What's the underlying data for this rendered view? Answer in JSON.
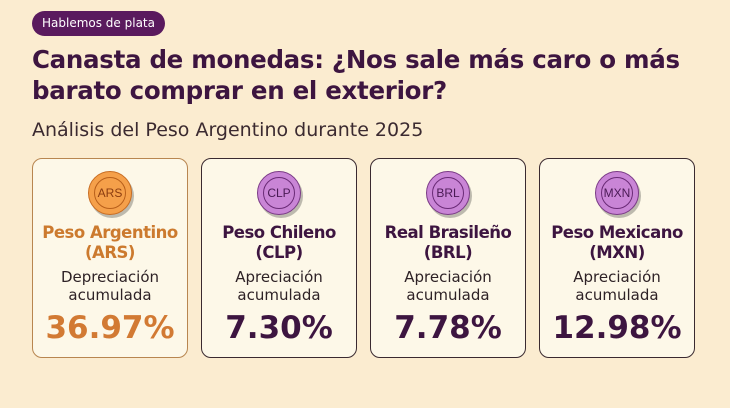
{
  "badge": "Hablemos de plata",
  "title": "Canasta de monedas: ¿Nos sale más caro o más barato comprar en el exterior?",
  "subtitle": "Análisis del Peso Argentino durante 2025",
  "colors": {
    "accent_purple": "#5a1a5e",
    "accent_orange": "#d27a33",
    "background": "#fbecd0"
  },
  "cards": [
    {
      "code": "ARS",
      "name_line1": "Peso Argentino",
      "name_line2": "(ARS)",
      "label_line1": "Depreciación",
      "label_line2": "acumulada",
      "value": "36.97%",
      "coin_icon": "coin-icon"
    },
    {
      "code": "CLP",
      "name_line1": "Peso Chileno",
      "name_line2": "(CLP)",
      "label_line1": "Apreciación",
      "label_line2": "acumulada",
      "value": "7.30%",
      "coin_icon": "coin-icon"
    },
    {
      "code": "BRL",
      "name_line1": "Real Brasileño",
      "name_line2": "(BRL)",
      "label_line1": "Apreciación",
      "label_line2": "acumulada",
      "value": "7.78%",
      "coin_icon": "coin-icon"
    },
    {
      "code": "MXN",
      "name_line1": "Peso Mexicano",
      "name_line2": "(MXN)",
      "label_line1": "Apreciación",
      "label_line2": "acumulada",
      "value": "12.98%",
      "coin_icon": "coin-icon"
    }
  ]
}
